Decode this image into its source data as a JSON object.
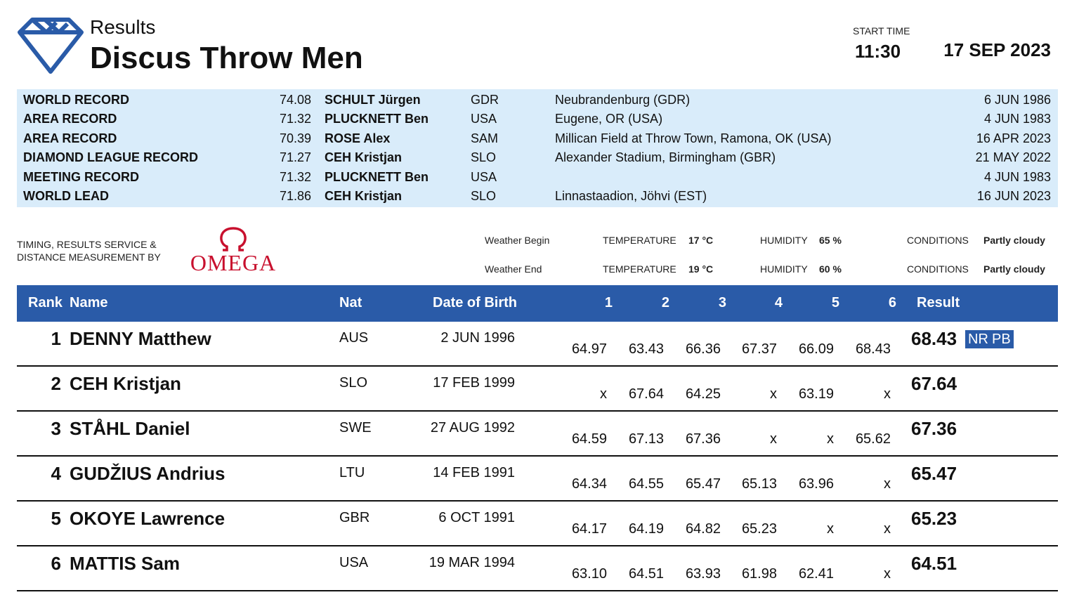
{
  "header": {
    "subtitle": "Results",
    "title": "Discus Throw Men",
    "start_label": "START TIME",
    "start_time": "11:30",
    "date": "17 SEP 2023"
  },
  "records": [
    {
      "type": "WORLD RECORD",
      "mark": "74.08",
      "athlete": "SCHULT Jürgen",
      "nat": "GDR",
      "venue": "Neubrandenburg (GDR)",
      "date": "6 JUN 1986"
    },
    {
      "type": "AREA RECORD",
      "mark": "71.32",
      "athlete": "PLUCKNETT Ben",
      "nat": "USA",
      "venue": "Eugene, OR (USA)",
      "date": "4 JUN 1983"
    },
    {
      "type": "AREA RECORD",
      "mark": "70.39",
      "athlete": "ROSE Alex",
      "nat": "SAM",
      "venue": "Millican Field at Throw Town, Ramona, OK (USA)",
      "date": "16 APR 2023"
    },
    {
      "type": "DIAMOND LEAGUE RECORD",
      "mark": "71.27",
      "athlete": "CEH Kristjan",
      "nat": "SLO",
      "venue": "Alexander Stadium, Birmingham (GBR)",
      "date": "21 MAY 2022"
    },
    {
      "type": "MEETING RECORD",
      "mark": "71.32",
      "athlete": "PLUCKNETT Ben",
      "nat": "USA",
      "venue": "",
      "date": "4 JUN 1983"
    },
    {
      "type": "WORLD LEAD",
      "mark": "71.86",
      "athlete": "CEH Kristjan",
      "nat": "SLO",
      "venue": "Linnastaadion, Jöhvi (EST)",
      "date": "16 JUN 2023"
    }
  ],
  "timing": {
    "line1": "TIMING, RESULTS SERVICE &",
    "line2": "DISTANCE MEASUREMENT BY",
    "brand": "OMEGA",
    "brand_symbol": "Ω",
    "brand_color": "#c8102e"
  },
  "weather": {
    "begin": {
      "label": "Weather Begin",
      "temp_label": "TEMPERATURE",
      "temp": "17 °C",
      "hum_label": "HUMIDITY",
      "hum": "65 %",
      "cond_label": "CONDITIONS",
      "cond": "Partly cloudy"
    },
    "end": {
      "label": "Weather End",
      "temp_label": "TEMPERATURE",
      "temp": "19 °C",
      "hum_label": "HUMIDITY",
      "hum": "60 %",
      "cond_label": "CONDITIONS",
      "cond": "Partly cloudy"
    }
  },
  "table": {
    "headers": {
      "rank": "Rank",
      "name": "Name",
      "nat": "Nat",
      "dob": "Date of Birth",
      "a1": "1",
      "a2": "2",
      "a3": "3",
      "a4": "4",
      "a5": "5",
      "a6": "6",
      "result": "Result"
    },
    "rows": [
      {
        "rank": "1",
        "name": "DENNY Matthew",
        "nat": "AUS",
        "dob": "2 JUN 1996",
        "attempts": [
          "64.97",
          "63.43",
          "66.36",
          "67.37",
          "66.09",
          "68.43"
        ],
        "result": "68.43",
        "badges": [
          "NR",
          "PB"
        ]
      },
      {
        "rank": "2",
        "name": "CEH Kristjan",
        "nat": "SLO",
        "dob": "17 FEB 1999",
        "attempts": [
          "x",
          "67.64",
          "64.25",
          "x",
          "63.19",
          "x"
        ],
        "result": "67.64",
        "badges": []
      },
      {
        "rank": "3",
        "name": "STÅHL Daniel",
        "nat": "SWE",
        "dob": "27 AUG 1992",
        "attempts": [
          "64.59",
          "67.13",
          "67.36",
          "x",
          "x",
          "65.62"
        ],
        "result": "67.36",
        "badges": []
      },
      {
        "rank": "4",
        "name": "GUDŽIUS Andrius",
        "nat": "LTU",
        "dob": "14 FEB 1991",
        "attempts": [
          "64.34",
          "64.55",
          "65.47",
          "65.13",
          "63.96",
          "x"
        ],
        "result": "65.47",
        "badges": []
      },
      {
        "rank": "5",
        "name": "OKOYE Lawrence",
        "nat": "GBR",
        "dob": "6 OCT 1991",
        "attempts": [
          "64.17",
          "64.19",
          "64.82",
          "65.23",
          "x",
          "x"
        ],
        "result": "65.23",
        "badges": []
      },
      {
        "rank": "6",
        "name": "MATTIS Sam",
        "nat": "USA",
        "dob": "19 MAR 1994",
        "attempts": [
          "63.10",
          "64.51",
          "63.93",
          "61.98",
          "62.41",
          "x"
        ],
        "result": "64.51",
        "badges": []
      }
    ]
  },
  "colors": {
    "header_bar": "#2a5ba8",
    "records_bg": "#d9ecfa",
    "logo": "#2a5ba8"
  }
}
